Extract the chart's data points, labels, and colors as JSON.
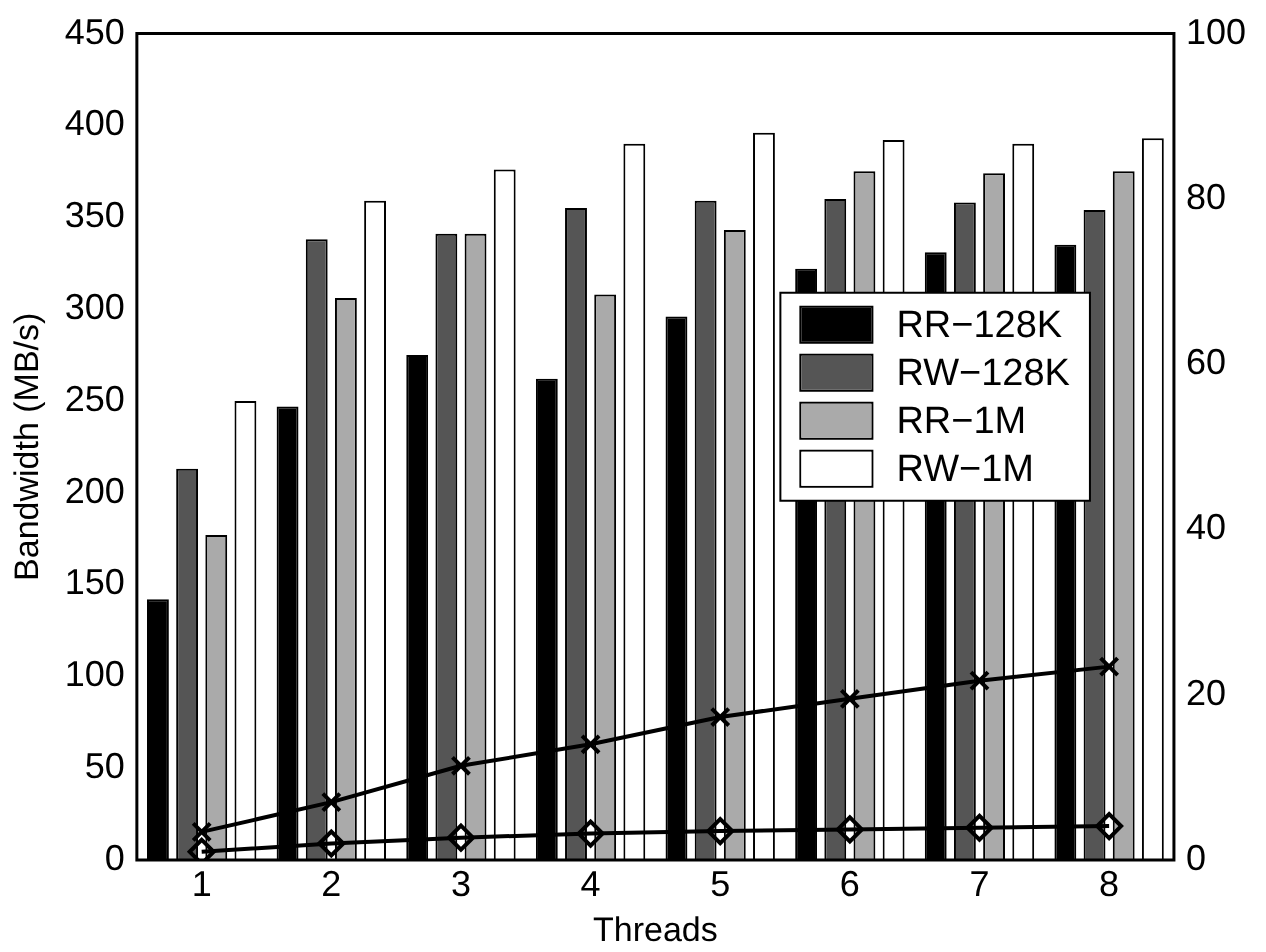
{
  "chart_data": {
    "type": "bar",
    "xlabel": "Threads",
    "ylabel": "Bandwidth (MB/s)",
    "categories": [
      "1",
      "2",
      "3",
      "4",
      "5",
      "6",
      "7",
      "8"
    ],
    "ylim": [
      0,
      450
    ],
    "yticks": [
      0,
      50,
      100,
      150,
      200,
      250,
      300,
      350,
      400,
      450
    ],
    "y2lim": [
      0,
      100
    ],
    "y2ticks": [
      0,
      20,
      40,
      60,
      80,
      100
    ],
    "legend": "right",
    "grid": false,
    "series": [
      {
        "name": "RR−128K",
        "color": "#000000",
        "values": [
          142,
          247,
          275,
          262,
          296,
          322,
          331,
          335
        ]
      },
      {
        "name": "RW−128K",
        "color": "#555555",
        "values": [
          213,
          338,
          341,
          355,
          359,
          360,
          358,
          354
        ]
      },
      {
        "name": "RR−1M",
        "color": "#aaaaaa",
        "values": [
          177,
          306,
          341,
          308,
          343,
          375,
          374,
          375
        ]
      },
      {
        "name": "RW−1M",
        "color": "#ffffff",
        "values": [
          250,
          359,
          376,
          390,
          396,
          392,
          390,
          393
        ]
      },
      {
        "type": "line",
        "axis": "y2",
        "marker": "cross",
        "color": "#000000",
        "values": [
          3.4,
          7,
          11.4,
          14,
          17.3,
          19.5,
          21.7,
          23.4
        ]
      },
      {
        "type": "line",
        "axis": "y2",
        "marker": "diamond",
        "color": "#000000",
        "values": [
          1,
          2,
          2.7,
          3.2,
          3.5,
          3.7,
          3.9,
          4.1
        ]
      }
    ]
  }
}
